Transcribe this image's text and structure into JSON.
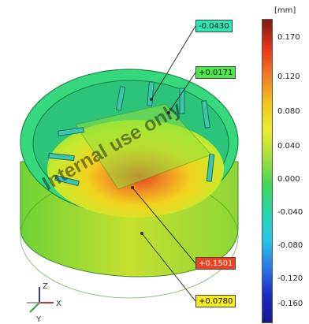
{
  "scale": {
    "unit": "[mm]",
    "ticks": [
      "0.170",
      "0.120",
      "0.080",
      "0.040",
      "0.000",
      "-0.040",
      "-0.080",
      "-0.120",
      "-0.160"
    ],
    "gradient": [
      "#7a1c10",
      "#e8321a",
      "#f07a22",
      "#f3c21e",
      "#e9ee2a",
      "#a6e03a",
      "#3ed85a",
      "#27d6a9",
      "#25c6e6",
      "#2b78e8",
      "#1d2ac6",
      "#151a8a"
    ]
  },
  "annotations": [
    {
      "value": "-0.0430",
      "color": "#2ee6b3"
    },
    {
      "value": "+0.0171",
      "color": "#4fe84a"
    },
    {
      "value": "+0.1501",
      "color": "#f0401e"
    },
    {
      "value": "+0.0780",
      "color": "#f6ea18"
    }
  ],
  "watermark": "Internal use only",
  "axes": {
    "z": "Z",
    "x": "X",
    "y": "Y"
  }
}
